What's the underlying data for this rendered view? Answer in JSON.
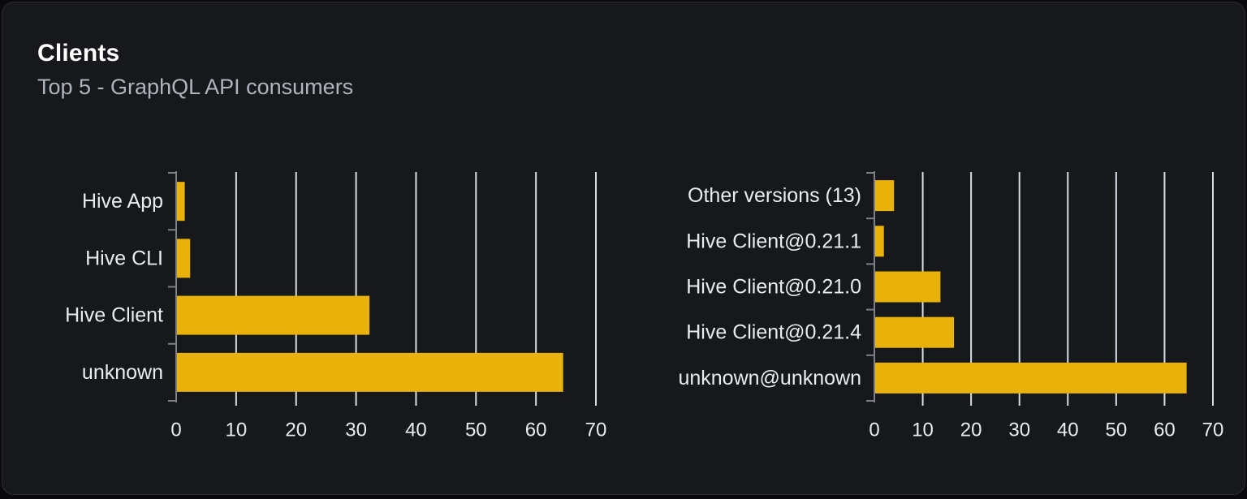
{
  "panel": {
    "title": "Clients",
    "subtitle": "Top 5 - GraphQL API consumers"
  },
  "colors": {
    "bar": "#e9b20a",
    "grid_line": "#d8dde6",
    "axis": "#7b8089",
    "label_text": "#e9ecef",
    "title_text": "#ffffff",
    "subtitle_text": "#aeb5bd",
    "card_bg": "#16181c",
    "card_border": "#2b2e34",
    "page_bg": "#0a0a0c"
  },
  "chart_data": [
    {
      "type": "bar",
      "orientation": "horizontal",
      "title": "",
      "categories": [
        "Hive App",
        "Hive CLI",
        "Hive Client",
        "unknown"
      ],
      "values": [
        1.3,
        2.2,
        32.1,
        64.4
      ],
      "xlabel": "",
      "ylabel": "",
      "xlim": [
        0,
        70
      ],
      "xticks": [
        0,
        10,
        20,
        30,
        40,
        50,
        60,
        70
      ],
      "grid": true,
      "legend": false
    },
    {
      "type": "bar",
      "orientation": "horizontal",
      "title": "",
      "categories": [
        "Other versions (13)",
        "Hive Client@0.21.1",
        "Hive Client@0.21.0",
        "Hive Client@0.21.4",
        "unknown@unknown"
      ],
      "values": [
        3.9,
        1.8,
        13.5,
        16.3,
        64.4
      ],
      "xlabel": "",
      "ylabel": "",
      "xlim": [
        0,
        70
      ],
      "xticks": [
        0,
        10,
        20,
        30,
        40,
        50,
        60,
        70
      ],
      "grid": true,
      "legend": false
    }
  ]
}
